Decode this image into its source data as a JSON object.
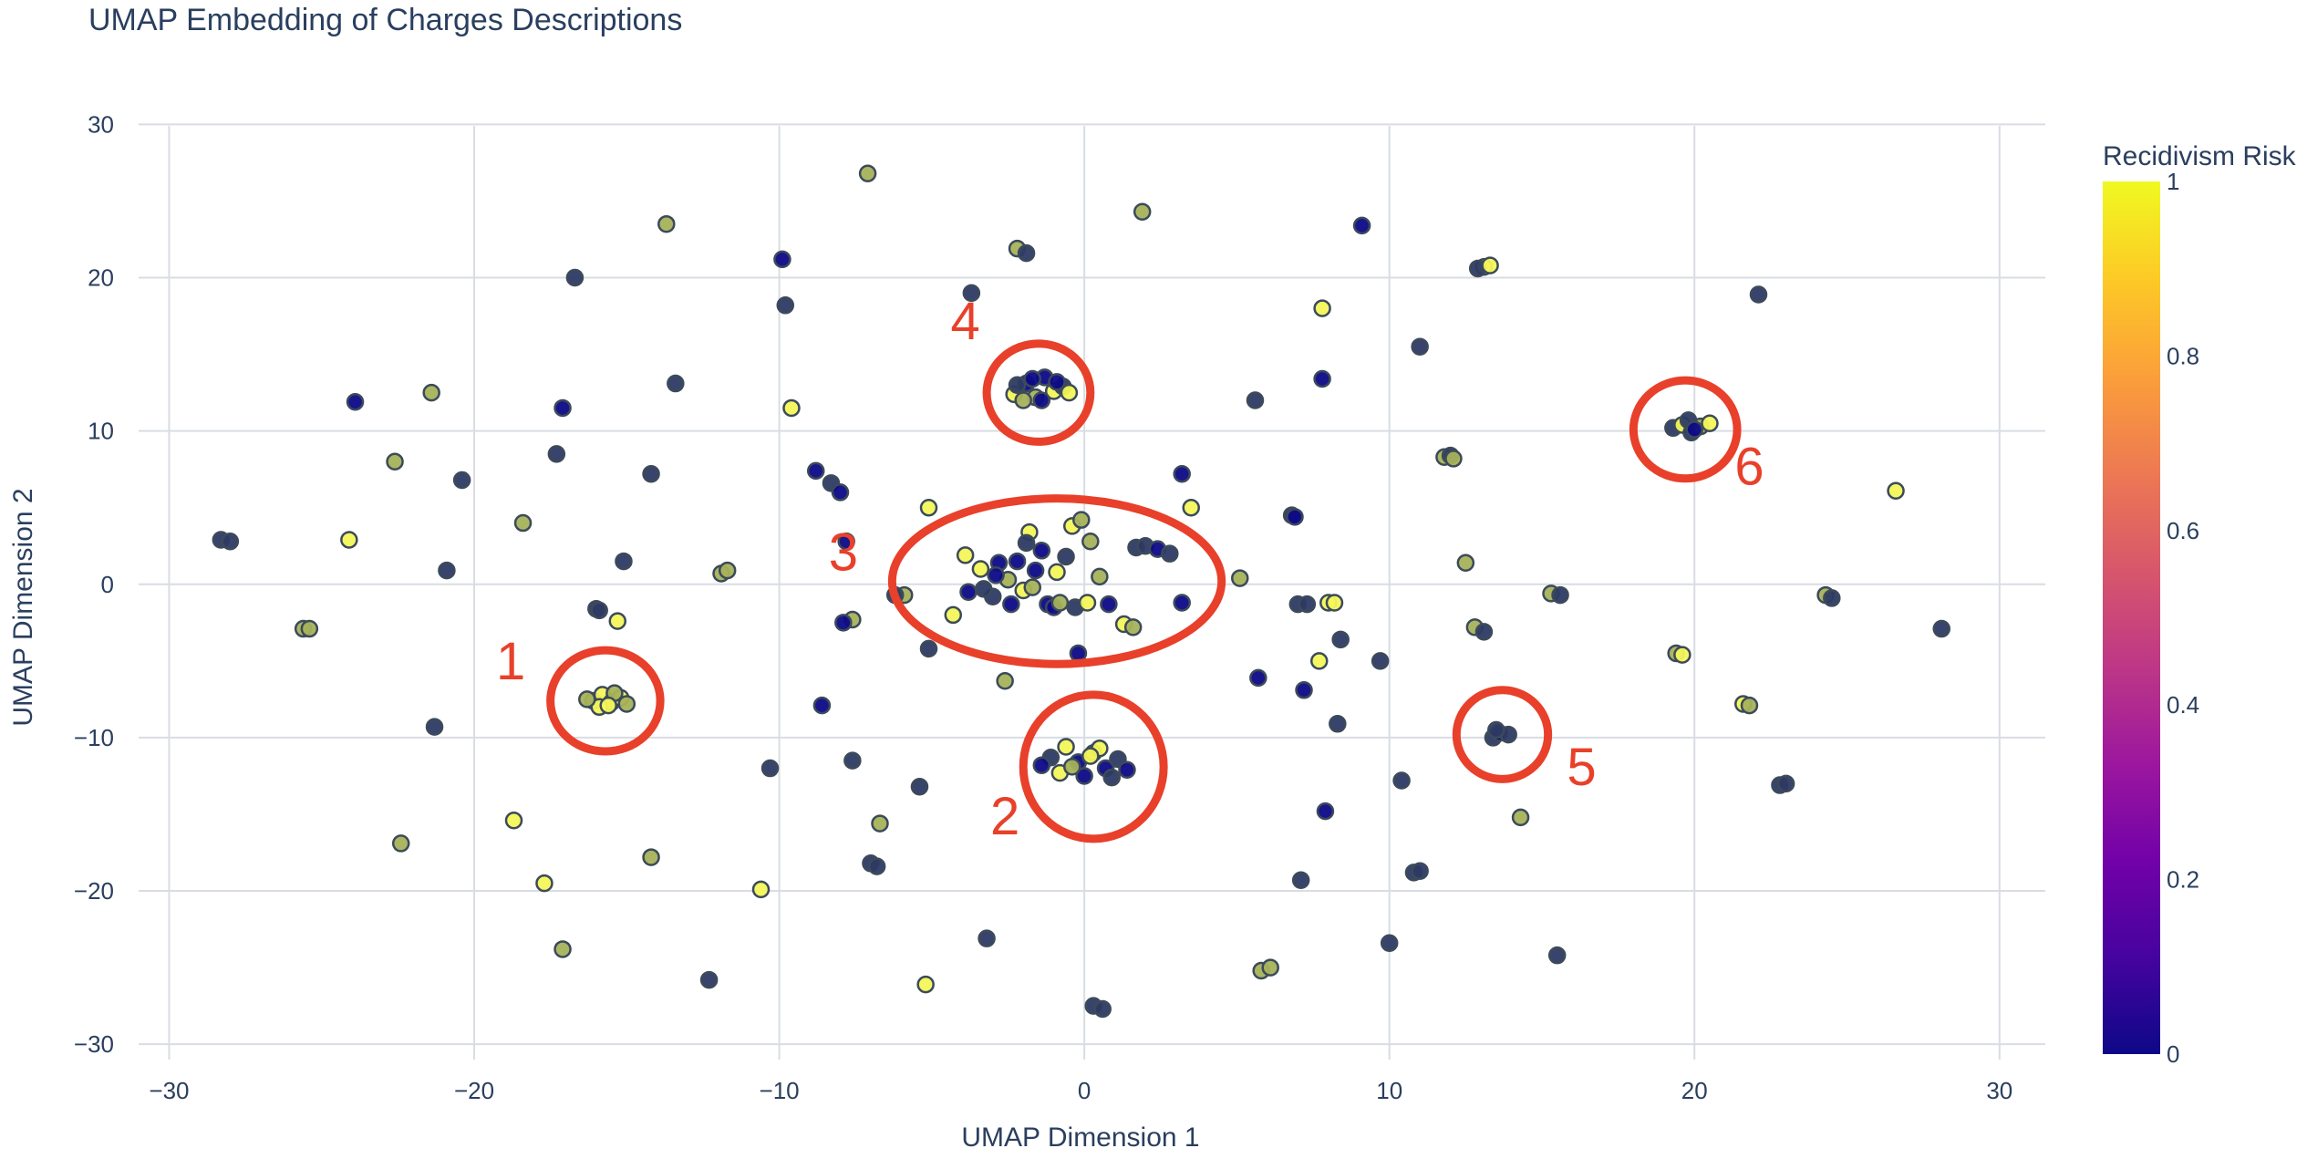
{
  "chart_data": {
    "type": "scatter",
    "title": "UMAP Embedding of Charges Descriptions",
    "xlabel": "UMAP Dimension 1",
    "ylabel": "UMAP Dimension 2",
    "xlim": [
      -31,
      31.5
    ],
    "ylim": [
      -31,
      30.5
    ],
    "xticks": [
      -30,
      -20,
      -10,
      0,
      10,
      20,
      30
    ],
    "yticks": [
      -30,
      -20,
      -10,
      0,
      10,
      20,
      30
    ],
    "xtick_labels": [
      "−30",
      "−20",
      "−10",
      "0",
      "10",
      "20",
      "30"
    ],
    "ytick_labels": [
      "−30",
      "−20",
      "−10",
      "0",
      "10",
      "20",
      "30"
    ],
    "grid": true,
    "colorbar": {
      "title": "Recidivism Risk",
      "range": [
        0,
        1
      ],
      "ticks": [
        0,
        0.2,
        0.4,
        0.6,
        0.8,
        1
      ],
      "tick_labels": [
        "0",
        "0.2",
        "0.4",
        "0.6",
        "0.8",
        "1"
      ],
      "colorscale": [
        "#0d0887",
        "#46039f",
        "#7201a8",
        "#9c179e",
        "#bd3786",
        "#d8576b",
        "#ed7953",
        "#fb9f3a",
        "#fdca26",
        "#f0f921"
      ]
    },
    "marker_colors": {
      "low_risk": "#2d3a63",
      "mid_risk": "#a6b25a",
      "high_risk": "#f3f55a",
      "very_low": "#0d0887",
      "outline": "#3c4a5a"
    },
    "points": [
      {
        "x": -28.3,
        "y": 2.9,
        "c": 0.1
      },
      {
        "x": -28.0,
        "y": 2.8,
        "c": 0.1
      },
      {
        "x": -25.6,
        "y": -2.9,
        "c": 0.75
      },
      {
        "x": -25.4,
        "y": -2.9,
        "c": 0.75
      },
      {
        "x": -23.9,
        "y": 11.9,
        "c": 0.05
      },
      {
        "x": -24.1,
        "y": 2.9,
        "c": 0.95
      },
      {
        "x": -22.6,
        "y": 8.0,
        "c": 0.8
      },
      {
        "x": -22.4,
        "y": -16.9,
        "c": 0.75
      },
      {
        "x": -21.4,
        "y": 12.5,
        "c": 0.8
      },
      {
        "x": -21.3,
        "y": -9.3,
        "c": 0.15
      },
      {
        "x": -20.9,
        "y": 0.9,
        "c": 0.1
      },
      {
        "x": -20.4,
        "y": 6.8,
        "c": 0.1
      },
      {
        "x": -18.7,
        "y": -15.4,
        "c": 0.95
      },
      {
        "x": -18.4,
        "y": 4.0,
        "c": 0.8
      },
      {
        "x": -17.7,
        "y": -19.5,
        "c": 0.95
      },
      {
        "x": -17.3,
        "y": 8.5,
        "c": 0.15
      },
      {
        "x": -17.1,
        "y": 11.5,
        "c": 0.05
      },
      {
        "x": -17.1,
        "y": -23.8,
        "c": 0.85
      },
      {
        "x": -16.7,
        "y": 20.0,
        "c": 0.15
      },
      {
        "x": -16.0,
        "y": -1.6,
        "c": 0.15
      },
      {
        "x": -15.9,
        "y": -1.7,
        "c": 0.15
      },
      {
        "x": -16.1,
        "y": -7.6,
        "c": 0.8
      },
      {
        "x": -15.8,
        "y": -7.2,
        "c": 0.95
      },
      {
        "x": -15.5,
        "y": -7.7,
        "c": 0.75
      },
      {
        "x": -15.2,
        "y": -7.4,
        "c": 0.9
      },
      {
        "x": -15.9,
        "y": -8.0,
        "c": 0.95
      },
      {
        "x": -15.4,
        "y": -7.1,
        "c": 0.8
      },
      {
        "x": -15.0,
        "y": -7.8,
        "c": 0.85
      },
      {
        "x": -16.3,
        "y": -7.5,
        "c": 0.7
      },
      {
        "x": -15.6,
        "y": -7.9,
        "c": 0.9
      },
      {
        "x": -15.3,
        "y": -2.4,
        "c": 0.95
      },
      {
        "x": -15.1,
        "y": 1.5,
        "c": 0.15
      },
      {
        "x": -14.2,
        "y": 7.2,
        "c": 0.15
      },
      {
        "x": -14.2,
        "y": -17.8,
        "c": 0.8
      },
      {
        "x": -13.7,
        "y": 23.5,
        "c": 0.8
      },
      {
        "x": -13.4,
        "y": 13.1,
        "c": 0.15
      },
      {
        "x": -12.3,
        "y": -25.8,
        "c": 0.15
      },
      {
        "x": -11.9,
        "y": 0.7,
        "c": 0.8
      },
      {
        "x": -11.7,
        "y": 0.9,
        "c": 0.8
      },
      {
        "x": -10.6,
        "y": -19.9,
        "c": 0.95
      },
      {
        "x": -10.3,
        "y": -12.0,
        "c": 0.15
      },
      {
        "x": -9.9,
        "y": 21.2,
        "c": 0.05
      },
      {
        "x": -9.8,
        "y": 18.2,
        "c": 0.15
      },
      {
        "x": -9.6,
        "y": 11.5,
        "c": 0.95
      },
      {
        "x": -8.6,
        "y": -7.9,
        "c": 0.05
      },
      {
        "x": -8.8,
        "y": 7.4,
        "c": 0.05
      },
      {
        "x": -8.3,
        "y": 6.6,
        "c": 0.1
      },
      {
        "x": -8.0,
        "y": 6.0,
        "c": 0.05
      },
      {
        "x": -7.8,
        "y": 2.8,
        "c": 0.05
      },
      {
        "x": -7.6,
        "y": -2.3,
        "c": 0.8
      },
      {
        "x": -7.9,
        "y": -2.5,
        "c": 0.05
      },
      {
        "x": -7.6,
        "y": -11.5,
        "c": 0.15
      },
      {
        "x": -7.1,
        "y": 26.8,
        "c": 0.8
      },
      {
        "x": -7.0,
        "y": -18.2,
        "c": 0.15
      },
      {
        "x": -6.8,
        "y": -18.4,
        "c": 0.15
      },
      {
        "x": -6.7,
        "y": -15.6,
        "c": 0.8
      },
      {
        "x": -5.9,
        "y": -0.7,
        "c": 0.8
      },
      {
        "x": -6.2,
        "y": -0.7,
        "c": 0.15
      },
      {
        "x": -5.4,
        "y": -13.2,
        "c": 0.15
      },
      {
        "x": -5.2,
        "y": -26.1,
        "c": 0.95
      },
      {
        "x": -5.1,
        "y": 5.0,
        "c": 0.9
      },
      {
        "x": -5.1,
        "y": -4.2,
        "c": 0.15
      },
      {
        "x": -4.3,
        "y": -2.0,
        "c": 0.95
      },
      {
        "x": -3.9,
        "y": 1.9,
        "c": 0.95
      },
      {
        "x": -3.7,
        "y": 19.0,
        "c": 0.1
      },
      {
        "x": -3.2,
        "y": -23.1,
        "c": 0.15
      },
      {
        "x": -2.6,
        "y": -6.3,
        "c": 0.8
      },
      {
        "x": -2.2,
        "y": 21.9,
        "c": 0.8
      },
      {
        "x": -1.9,
        "y": 21.6,
        "c": 0.15
      },
      {
        "x": -3.8,
        "y": -0.5,
        "c": 0.05
      },
      {
        "x": -3.4,
        "y": 1.0,
        "c": 0.95
      },
      {
        "x": -3.0,
        "y": -0.8,
        "c": 0.15
      },
      {
        "x": -2.8,
        "y": 1.4,
        "c": 0.05
      },
      {
        "x": -2.5,
        "y": 0.3,
        "c": 0.8
      },
      {
        "x": -2.2,
        "y": 1.5,
        "c": 0.05
      },
      {
        "x": -2.0,
        "y": -0.4,
        "c": 0.95
      },
      {
        "x": -1.8,
        "y": 3.4,
        "c": 0.95
      },
      {
        "x": -1.6,
        "y": 0.9,
        "c": 0.05
      },
      {
        "x": -1.4,
        "y": 2.2,
        "c": 0.05
      },
      {
        "x": -1.2,
        "y": -1.3,
        "c": 0.05
      },
      {
        "x": -0.9,
        "y": 0.8,
        "c": 0.95
      },
      {
        "x": -0.6,
        "y": 1.8,
        "c": 0.15
      },
      {
        "x": -0.4,
        "y": 3.8,
        "c": 0.95
      },
      {
        "x": -0.1,
        "y": 4.2,
        "c": 0.8
      },
      {
        "x": 0.2,
        "y": 2.8,
        "c": 0.8
      },
      {
        "x": 0.5,
        "y": 0.5,
        "c": 0.8
      },
      {
        "x": -0.3,
        "y": -1.5,
        "c": 0.15
      },
      {
        "x": -1.0,
        "y": -1.5,
        "c": 0.05
      },
      {
        "x": -2.4,
        "y": -1.3,
        "c": 0.05
      },
      {
        "x": -1.7,
        "y": -0.2,
        "c": 0.8
      },
      {
        "x": -2.9,
        "y": 0.6,
        "c": 0.05
      },
      {
        "x": 0.1,
        "y": -1.2,
        "c": 0.95
      },
      {
        "x": -0.8,
        "y": -1.2,
        "c": 0.8
      },
      {
        "x": -3.3,
        "y": -0.3,
        "c": 0.15
      },
      {
        "x": -1.9,
        "y": 2.7,
        "c": 0.15
      },
      {
        "x": 0.8,
        "y": -1.3,
        "c": 0.05
      },
      {
        "x": -0.2,
        "y": -4.5,
        "c": 0.05
      },
      {
        "x": 1.3,
        "y": -2.6,
        "c": 0.95
      },
      {
        "x": 1.6,
        "y": -2.8,
        "c": 0.8
      },
      {
        "x": 1.7,
        "y": 2.4,
        "c": 0.15
      },
      {
        "x": 2.0,
        "y": 2.5,
        "c": 0.15
      },
      {
        "x": 2.4,
        "y": 2.3,
        "c": 0.05
      },
      {
        "x": 2.8,
        "y": 2.0,
        "c": 0.15
      },
      {
        "x": 1.9,
        "y": 24.3,
        "c": 0.8
      },
      {
        "x": 3.2,
        "y": 7.2,
        "c": 0.05
      },
      {
        "x": 3.5,
        "y": 5.0,
        "c": 0.95
      },
      {
        "x": 3.2,
        "y": -1.2,
        "c": 0.05
      },
      {
        "x": -2.3,
        "y": 12.4,
        "c": 0.95
      },
      {
        "x": -1.9,
        "y": 13.1,
        "c": 0.05
      },
      {
        "x": -1.6,
        "y": 12.2,
        "c": 0.8
      },
      {
        "x": -1.3,
        "y": 13.5,
        "c": 0.05
      },
      {
        "x": -1.0,
        "y": 12.6,
        "c": 0.95
      },
      {
        "x": -0.7,
        "y": 12.9,
        "c": 0.15
      },
      {
        "x": -2.0,
        "y": 12.0,
        "c": 0.8
      },
      {
        "x": -1.4,
        "y": 12.0,
        "c": 0.05
      },
      {
        "x": -0.9,
        "y": 13.2,
        "c": 0.05
      },
      {
        "x": -2.2,
        "y": 13.0,
        "c": 0.15
      },
      {
        "x": -0.5,
        "y": 12.5,
        "c": 0.95
      },
      {
        "x": -1.7,
        "y": 13.4,
        "c": 0.05
      },
      {
        "x": -1.1,
        "y": -11.3,
        "c": 0.15
      },
      {
        "x": -0.6,
        "y": -10.6,
        "c": 0.95
      },
      {
        "x": -0.2,
        "y": -11.6,
        "c": 0.05
      },
      {
        "x": 0.3,
        "y": -11.0,
        "c": 0.8
      },
      {
        "x": 0.7,
        "y": -12.0,
        "c": 0.05
      },
      {
        "x": 1.1,
        "y": -11.4,
        "c": 0.15
      },
      {
        "x": -0.8,
        "y": -12.3,
        "c": 0.95
      },
      {
        "x": 0.0,
        "y": -12.5,
        "c": 0.05
      },
      {
        "x": 0.5,
        "y": -10.7,
        "c": 0.95
      },
      {
        "x": 1.4,
        "y": -12.1,
        "c": 0.05
      },
      {
        "x": -0.4,
        "y": -11.9,
        "c": 0.8
      },
      {
        "x": 0.9,
        "y": -12.6,
        "c": 0.15
      },
      {
        "x": -1.4,
        "y": -11.8,
        "c": 0.05
      },
      {
        "x": 0.2,
        "y": -11.2,
        "c": 0.95
      },
      {
        "x": 0.3,
        "y": -27.5,
        "c": 0.15
      },
      {
        "x": 0.6,
        "y": -27.7,
        "c": 0.15
      },
      {
        "x": 5.1,
        "y": 0.4,
        "c": 0.8
      },
      {
        "x": 5.6,
        "y": 12.0,
        "c": 0.15
      },
      {
        "x": 5.7,
        "y": -6.1,
        "c": 0.05
      },
      {
        "x": 5.8,
        "y": -25.2,
        "c": 0.8
      },
      {
        "x": 6.1,
        "y": -25.0,
        "c": 0.8
      },
      {
        "x": 6.8,
        "y": 4.5,
        "c": 0.15
      },
      {
        "x": 6.9,
        "y": 4.4,
        "c": 0.05
      },
      {
        "x": 7.0,
        "y": -1.3,
        "c": 0.15
      },
      {
        "x": 7.3,
        "y": -1.3,
        "c": 0.15
      },
      {
        "x": 7.1,
        "y": -19.3,
        "c": 0.15
      },
      {
        "x": 7.2,
        "y": -6.9,
        "c": 0.05
      },
      {
        "x": 7.7,
        "y": -5.0,
        "c": 0.95
      },
      {
        "x": 7.8,
        "y": 18.0,
        "c": 0.95
      },
      {
        "x": 7.8,
        "y": 13.4,
        "c": 0.05
      },
      {
        "x": 7.9,
        "y": -14.8,
        "c": 0.05
      },
      {
        "x": 8.0,
        "y": -1.2,
        "c": 0.95
      },
      {
        "x": 8.2,
        "y": -1.2,
        "c": 0.95
      },
      {
        "x": 8.3,
        "y": -9.1,
        "c": 0.15
      },
      {
        "x": 8.4,
        "y": -3.6,
        "c": 0.15
      },
      {
        "x": 9.1,
        "y": 23.4,
        "c": 0.05
      },
      {
        "x": 9.7,
        "y": -5.0,
        "c": 0.15
      },
      {
        "x": 10.0,
        "y": -23.4,
        "c": 0.15
      },
      {
        "x": 10.4,
        "y": -12.8,
        "c": 0.15
      },
      {
        "x": 10.8,
        "y": -18.8,
        "c": 0.15
      },
      {
        "x": 11.0,
        "y": -18.7,
        "c": 0.15
      },
      {
        "x": 11.0,
        "y": 15.5,
        "c": 0.15
      },
      {
        "x": 11.8,
        "y": 8.3,
        "c": 0.8
      },
      {
        "x": 12.0,
        "y": 8.4,
        "c": 0.15
      },
      {
        "x": 12.1,
        "y": 8.2,
        "c": 0.8
      },
      {
        "x": 12.5,
        "y": 1.4,
        "c": 0.8
      },
      {
        "x": 12.8,
        "y": -2.8,
        "c": 0.8
      },
      {
        "x": 13.1,
        "y": -3.1,
        "c": 0.15
      },
      {
        "x": 13.1,
        "y": 20.7,
        "c": 0.95
      },
      {
        "x": 12.9,
        "y": 20.6,
        "c": 0.15
      },
      {
        "x": 13.3,
        "y": 20.8,
        "c": 0.95
      },
      {
        "x": 13.4,
        "y": -10.0,
        "c": 0.15
      },
      {
        "x": 13.6,
        "y": -9.7,
        "c": 0.05
      },
      {
        "x": 13.9,
        "y": -9.8,
        "c": 0.15
      },
      {
        "x": 13.5,
        "y": -9.5,
        "c": 0.15
      },
      {
        "x": 14.3,
        "y": -15.2,
        "c": 0.8
      },
      {
        "x": 15.3,
        "y": -0.6,
        "c": 0.8
      },
      {
        "x": 15.6,
        "y": -0.7,
        "c": 0.15
      },
      {
        "x": 15.5,
        "y": -24.2,
        "c": 0.15
      },
      {
        "x": 19.4,
        "y": -4.5,
        "c": 0.8
      },
      {
        "x": 19.6,
        "y": -4.6,
        "c": 0.95
      },
      {
        "x": 19.3,
        "y": 10.2,
        "c": 0.15
      },
      {
        "x": 19.6,
        "y": 10.4,
        "c": 0.95
      },
      {
        "x": 19.9,
        "y": 9.9,
        "c": 0.15
      },
      {
        "x": 20.2,
        "y": 10.3,
        "c": 0.8
      },
      {
        "x": 20.5,
        "y": 10.5,
        "c": 0.95
      },
      {
        "x": 19.8,
        "y": 10.7,
        "c": 0.15
      },
      {
        "x": 20.0,
        "y": 10.1,
        "c": 0.05
      },
      {
        "x": 21.6,
        "y": -7.8,
        "c": 0.95
      },
      {
        "x": 21.8,
        "y": -7.9,
        "c": 0.8
      },
      {
        "x": 22.1,
        "y": 18.9,
        "c": 0.15
      },
      {
        "x": 22.8,
        "y": -13.1,
        "c": 0.15
      },
      {
        "x": 23.0,
        "y": -13.0,
        "c": 0.15
      },
      {
        "x": 24.3,
        "y": -0.7,
        "c": 0.8
      },
      {
        "x": 24.5,
        "y": -0.9,
        "c": 0.15
      },
      {
        "x": 26.6,
        "y": 6.1,
        "c": 0.95
      },
      {
        "x": 28.1,
        "y": -2.9,
        "c": 0.15
      }
    ],
    "annotations": [
      {
        "label": "1",
        "label_x": -18.8,
        "label_y": -6.2,
        "cx": -15.7,
        "cy": -7.6,
        "rx": 1.8,
        "ry": 3.3
      },
      {
        "label": "2",
        "label_x": -2.6,
        "label_y": -16.3,
        "cx": 0.3,
        "cy": -11.9,
        "rx": 2.3,
        "ry": 4.7
      },
      {
        "label": "3",
        "label_x": -7.9,
        "label_y": 0.9,
        "cx": -0.9,
        "cy": 0.2,
        "rx": 5.4,
        "ry": 5.4
      },
      {
        "label": "4",
        "label_x": -3.9,
        "label_y": 16.0,
        "cx": -1.5,
        "cy": 12.5,
        "rx": 1.7,
        "ry": 3.2
      },
      {
        "label": "5",
        "label_x": 16.3,
        "label_y": -13.1,
        "cx": 13.7,
        "cy": -9.8,
        "rx": 1.5,
        "ry": 2.9
      },
      {
        "label": "6",
        "label_x": 21.8,
        "label_y": 6.5,
        "cx": 19.7,
        "cy": 10.1,
        "rx": 1.7,
        "ry": 3.2
      }
    ]
  }
}
